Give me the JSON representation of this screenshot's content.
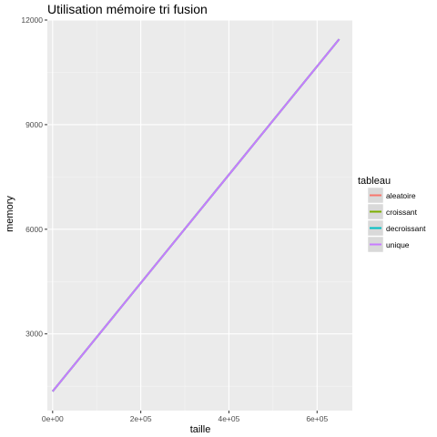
{
  "chart_data": {
    "type": "line",
    "title": "Utilisation mémoire tri fusion",
    "xlabel": "taille",
    "ylabel": "memory",
    "xlim": [
      -12000,
      680000
    ],
    "ylim": [
      800,
      12000
    ],
    "x_ticks": [
      0,
      200000,
      400000,
      600000
    ],
    "x_tick_labels": [
      "0e+00",
      "2e+05",
      "4e+05",
      "6e+05"
    ],
    "y_ticks": [
      3000,
      6000,
      9000,
      12000
    ],
    "y_tick_labels": [
      "3000",
      "6000",
      "9000",
      "12000"
    ],
    "grid": true,
    "legend": {
      "title": "tableau",
      "position": "right"
    },
    "series": [
      {
        "name": "aleatoire",
        "color": "#F8766D",
        "x": [
          0,
          650000
        ],
        "y": [
          1350,
          11450
        ]
      },
      {
        "name": "croissant",
        "color": "#7CAE00",
        "x": [
          0,
          650000
        ],
        "y": [
          1350,
          11450
        ]
      },
      {
        "name": "decroissant",
        "color": "#00BFC4",
        "x": [
          0,
          650000
        ],
        "y": [
          1350,
          11450
        ]
      },
      {
        "name": "unique",
        "color": "#C77CFF",
        "x": [
          0,
          650000
        ],
        "y": [
          1350,
          11450
        ]
      }
    ]
  }
}
